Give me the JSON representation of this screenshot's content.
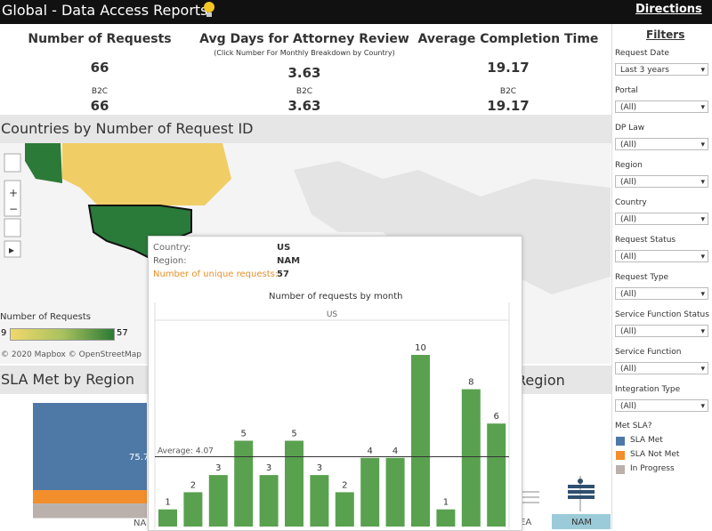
{
  "header": {
    "title": "Global - Data Access Reports",
    "link": "Directions"
  },
  "kpis": [
    {
      "title": "Number of Requests",
      "value": 66,
      "sub_label": "B2C",
      "sub_value": 66
    },
    {
      "title": "Avg Days for Attorney Review",
      "note": "(Click Number For Monthly Breakdown by Country)",
      "value": 3.63,
      "sub_label": "B2C",
      "sub_value": 3.63
    },
    {
      "title": "Average Completion Time",
      "value": 19.17,
      "sub_label": "B2C",
      "sub_value": 19.17
    }
  ],
  "map": {
    "title": "Countries by Number of Request ID",
    "legend_title": "Number of Requests",
    "legend_min": 9,
    "legend_max": 57,
    "attribution": "© 2020 Mapbox © OpenStreetMap"
  },
  "region_chart": {
    "title_fragment": "Region",
    "labels": [
      "EA",
      "NAM"
    ]
  },
  "filters": {
    "title": "Filters",
    "items": [
      {
        "label": "Request Date",
        "value": "Last 3 years"
      },
      {
        "label": "Portal",
        "value": "(All)"
      },
      {
        "label": "DP Law",
        "value": "(All)"
      },
      {
        "label": "Region",
        "value": "(All)"
      },
      {
        "label": "Country",
        "value": "(All)"
      },
      {
        "label": "Request Status",
        "value": "(All)"
      },
      {
        "label": "Request Type",
        "value": "(All)"
      },
      {
        "label": "Service Function Status",
        "value": "(All)"
      },
      {
        "label": "Service Function",
        "value": "(All)"
      },
      {
        "label": "Integration Type",
        "value": "(All)"
      }
    ]
  },
  "tooltip": {
    "rows": [
      {
        "key": "Country:",
        "value": "US"
      },
      {
        "key": "Region:",
        "value": "NAM"
      },
      {
        "key": "Number of unique requests:",
        "value": 57
      }
    ]
  },
  "chart_data": [
    {
      "type": "stacked-bar",
      "title": "SLA Met by Region",
      "legend_title": "Met SLA?",
      "categories": [
        "NA"
      ],
      "series": [
        {
          "name": "SLA Met",
          "color": "#4e79a7",
          "values": [
            75.7
          ]
        },
        {
          "name": "SLA Not Met",
          "color": "#f28e2b",
          "values": [
            11.6
          ]
        },
        {
          "name": "In Progress",
          "color": "#bab0ac",
          "values": [
            12.7
          ]
        }
      ],
      "ylim": [
        0,
        100
      ]
    },
    {
      "type": "bar",
      "title": "Number of requests by month",
      "panel_label": "US",
      "color": "#59a14f",
      "categories": [
        null,
        null,
        null,
        null,
        null,
        null,
        null,
        null,
        null,
        null,
        null,
        null,
        null,
        null
      ],
      "values": [
        1,
        2,
        3,
        5,
        3,
        5,
        3,
        2,
        4,
        4,
        10,
        1,
        8,
        6
      ],
      "reference_line": {
        "value": 4.07,
        "label": "Average: 4.07"
      }
    }
  ]
}
